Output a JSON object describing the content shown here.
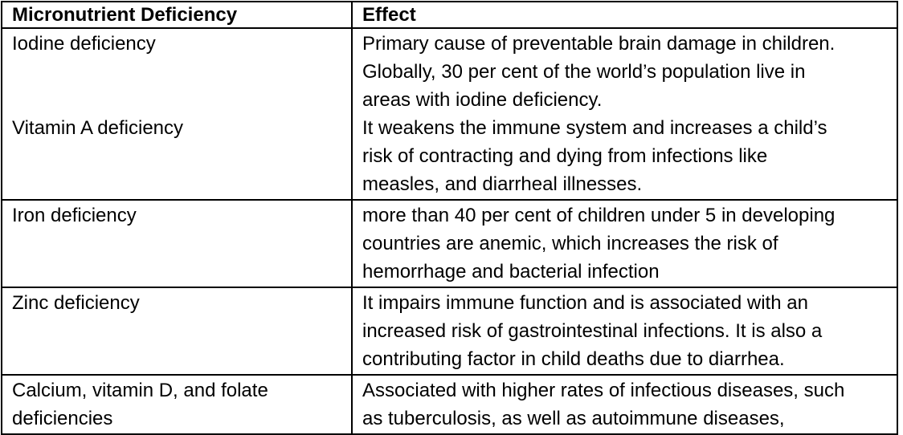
{
  "table": {
    "colors": {
      "border": "#000000",
      "text": "#000000",
      "background": "#ffffff"
    },
    "header": {
      "deficiency_label": "Micronutrient Deficiency",
      "effect_label": "Effect"
    },
    "rows": [
      {
        "deficiency_lines": [
          "Iodine deficiency",
          "",
          "",
          "Vitamin A deficiency"
        ],
        "effect_lines": [
          "Primary cause of preventable brain damage in children.",
          "Globally, 30 per cent of the world’s population live in",
          "areas with iodine deficiency.",
          "It weakens the immune system and increases a child’s",
          "risk of contracting and dying from infections like",
          "measles, and diarrheal illnesses."
        ]
      },
      {
        "deficiency_lines": [
          "Iron deficiency"
        ],
        "effect_lines": [
          "more than 40 per cent of children under 5 in developing",
          "countries are anemic, which increases the risk of",
          "hemorrhage and bacterial infection"
        ]
      },
      {
        "deficiency_lines": [
          "Zinc deficiency"
        ],
        "effect_lines": [
          "It impairs immune function and is associated with an",
          "increased risk of gastrointestinal infections. It is also a",
          "contributing factor in child deaths due to diarrhea."
        ]
      },
      {
        "deficiency_lines": [
          "Calcium, vitamin D, and folate",
          "deficiencies"
        ],
        "effect_lines": [
          "Associated with higher rates of infectious diseases, such",
          "as tuberculosis, as well as autoimmune diseases,"
        ]
      }
    ]
  }
}
